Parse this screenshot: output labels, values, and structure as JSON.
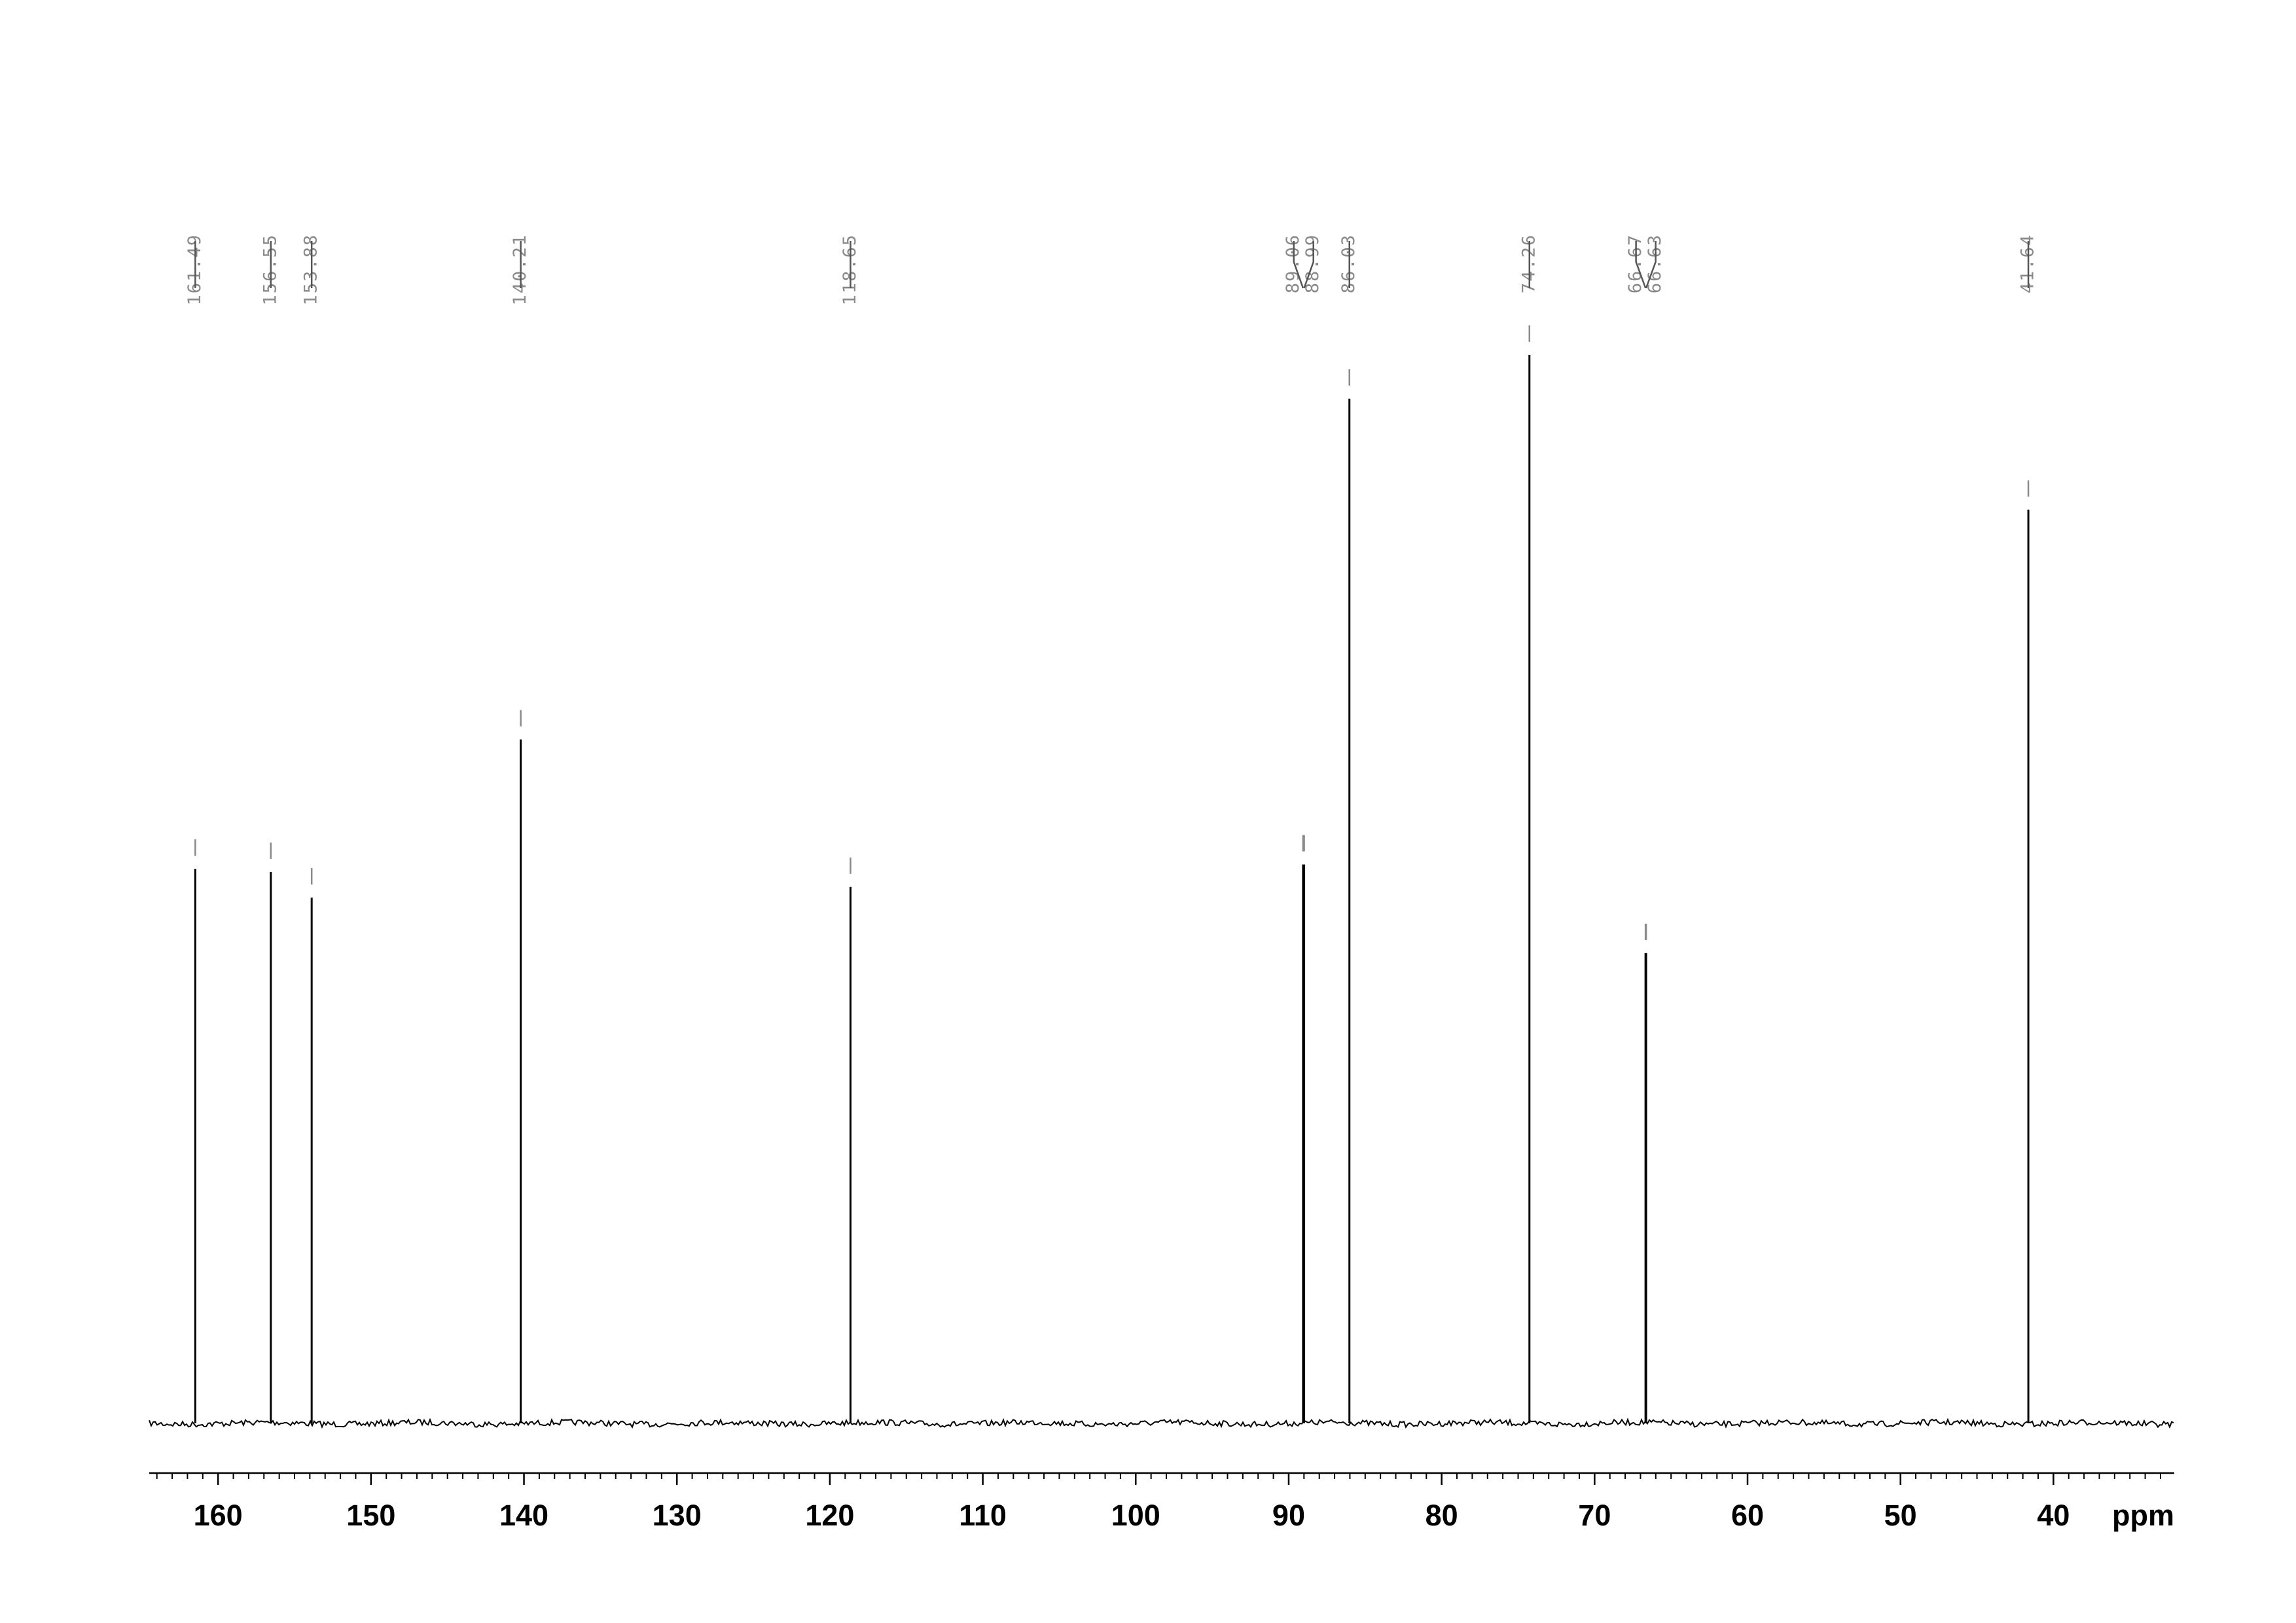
{
  "chart_data": {
    "type": "spectrum",
    "x": [
      161.49,
      156.55,
      153.88,
      140.21,
      118.65,
      89.06,
      88.99,
      86.03,
      74.26,
      66.67,
      66.63,
      41.64
    ],
    "values": [
      51.9,
      51.6,
      49.2,
      64.0,
      50.2,
      52.3,
      52.3,
      95.9,
      100,
      44.0,
      44.0,
      85.5
    ],
    "xlim": [
      164.5,
      32.1
    ],
    "ylim": [
      0,
      100
    ],
    "xticks": [
      160,
      150,
      140,
      130,
      120,
      110,
      100,
      90,
      80,
      70,
      60,
      50,
      40
    ],
    "xminor_step": 1,
    "x_label": "ppm",
    "color": "#000000",
    "label_color": "#8a8a8a"
  }
}
